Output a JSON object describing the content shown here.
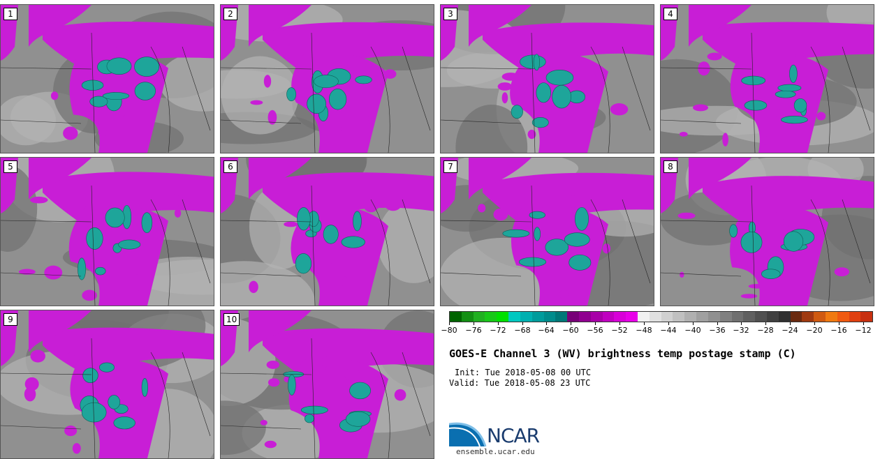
{
  "panels": [
    {
      "label": "1"
    },
    {
      "label": "2"
    },
    {
      "label": "3"
    },
    {
      "label": "4"
    },
    {
      "label": "5"
    },
    {
      "label": "6"
    },
    {
      "label": "7"
    },
    {
      "label": "8"
    },
    {
      "label": "9"
    },
    {
      "label": "10"
    }
  ],
  "colorbar": {
    "ticks": [
      "-80",
      "-76",
      "-72",
      "-68",
      "-64",
      "-60",
      "-56",
      "-52",
      "-48",
      "-44",
      "-40",
      "-36",
      "-32",
      "-28",
      "-24",
      "-20",
      "-16",
      "-12"
    ],
    "colors": [
      "#006400",
      "#138f13",
      "#20b020",
      "#18c818",
      "#00e000",
      "#00c8c0",
      "#00b0b0",
      "#009c9c",
      "#008c8c",
      "#007878",
      "#780078",
      "#900090",
      "#a800a8",
      "#c000c0",
      "#d800d8",
      "#e800e8",
      "#f0f0f0",
      "#e0e0e0",
      "#d0d0d0",
      "#c0c0c0",
      "#b0b0b0",
      "#a0a0a0",
      "#909090",
      "#808080",
      "#707070",
      "#606060",
      "#505050",
      "#404040",
      "#303030",
      "#6a2a10",
      "#a03a10",
      "#d05a10",
      "#f07a10",
      "#f05a10",
      "#e04010",
      "#c83010"
    ]
  },
  "title": "GOES-E Channel 3 (WV) brightness temp postage stamp (C)",
  "init": "Init: Tue 2018-05-08 00 UTC",
  "valid": "Valid: Tue 2018-05-08 23 UTC",
  "logo": {
    "name": "NCAR",
    "url": "ensemble.ucar.edu"
  },
  "palette": {
    "magenta": "#c81ed6",
    "teal": "#1ea59a",
    "gray_dark": "#7a7a7a",
    "gray_light": "#c8c8c8"
  }
}
